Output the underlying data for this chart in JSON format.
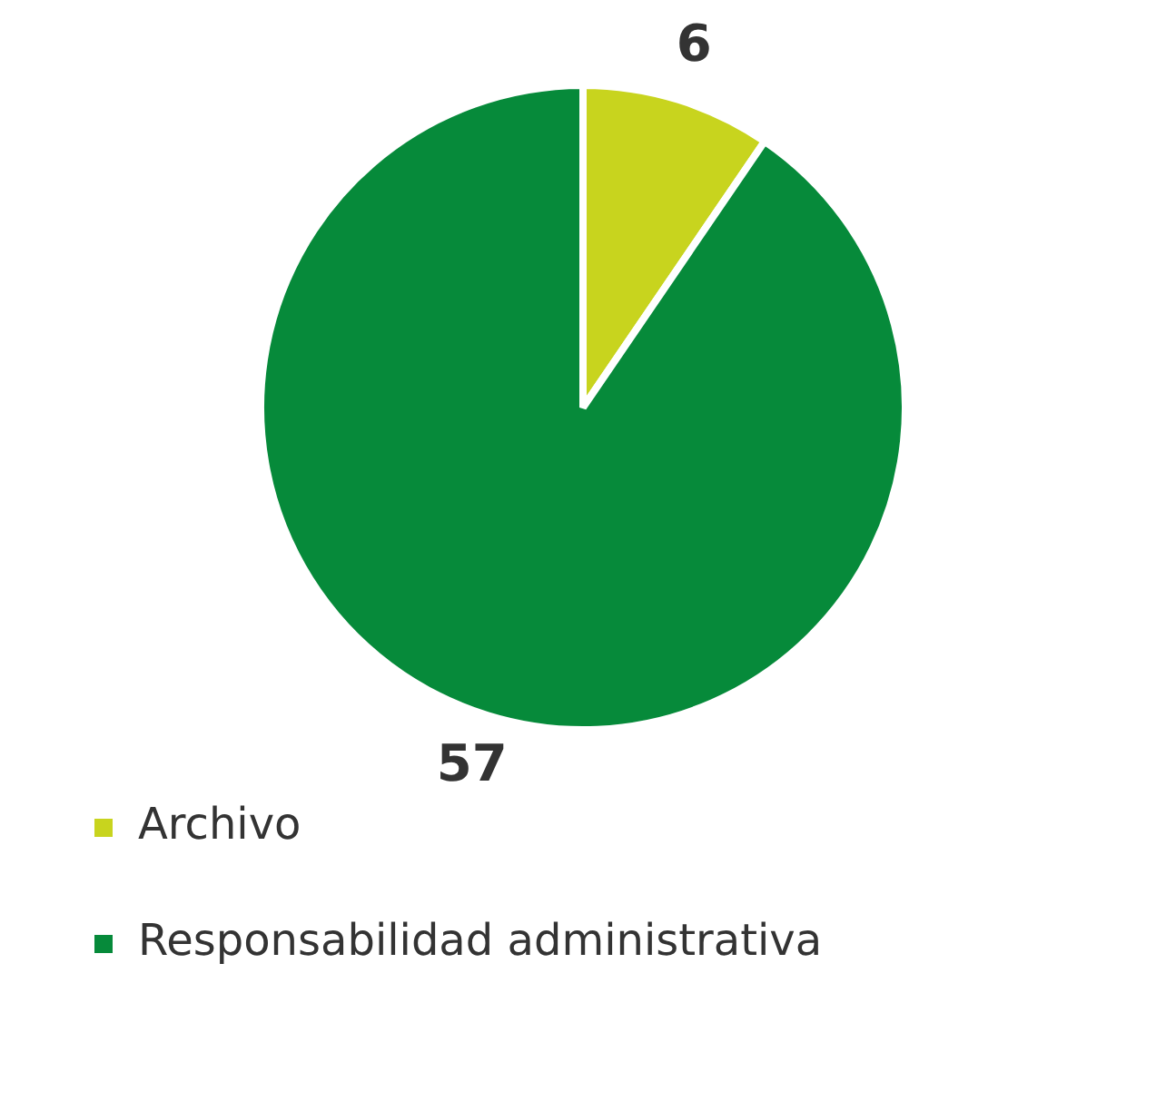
{
  "chart_data": {
    "type": "pie",
    "categories": [
      "Archivo",
      "Responsabilidad administrativa"
    ],
    "values": [
      6,
      57
    ],
    "colors": [
      "#c8d41e",
      "#068a3a"
    ],
    "data_labels": true,
    "legend": "bottom"
  }
}
